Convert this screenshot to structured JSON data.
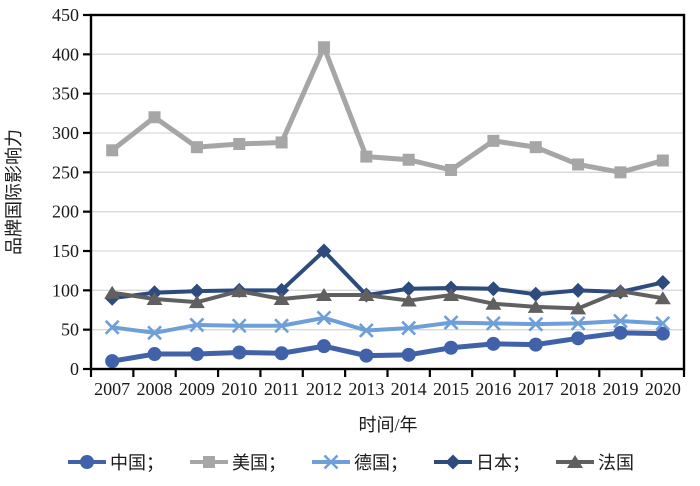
{
  "chart_data": {
    "type": "line",
    "title": "",
    "xlabel": "时间/年",
    "ylabel": "品牌国际影响力",
    "x": [
      "2007",
      "2008",
      "2009",
      "2010",
      "2011",
      "2012",
      "2013",
      "2014",
      "2015",
      "2016",
      "2017",
      "2018",
      "2019",
      "2020"
    ],
    "ylim": [
      0,
      450
    ],
    "yticks": [
      0,
      50,
      100,
      150,
      200,
      250,
      300,
      350,
      400,
      450
    ],
    "grid": true,
    "gridline_color": "#d9d9d9",
    "axis_color": "#000000",
    "legend_position": "bottom",
    "series": [
      {
        "name": "中国",
        "legend_label": "中国；",
        "color": "#4161a9",
        "marker": "circle",
        "values": [
          10,
          19,
          19,
          21,
          20,
          29,
          17,
          18,
          27,
          32,
          31,
          39,
          46,
          45
        ]
      },
      {
        "name": "美国",
        "legend_label": "美国；",
        "color": "#a6a6a6",
        "marker": "square",
        "values": [
          278,
          320,
          282,
          286,
          288,
          409,
          270,
          266,
          253,
          290,
          282,
          260,
          250,
          265
        ]
      },
      {
        "name": "德国",
        "legend_label": "德国；",
        "color": "#6f9fd8",
        "marker": "x",
        "values": [
          53,
          46,
          56,
          55,
          55,
          65,
          49,
          52,
          59,
          58,
          57,
          58,
          61,
          58
        ]
      },
      {
        "name": "日本",
        "legend_label": "日本；",
        "color": "#2e4b7e",
        "marker": "diamond",
        "values": [
          90,
          97,
          99,
          100,
          100,
          150,
          94,
          102,
          103,
          102,
          95,
          100,
          98,
          110
        ]
      },
      {
        "name": "法国",
        "legend_label": "法国",
        "color": "#606060",
        "marker": "triangle",
        "values": [
          97,
          89,
          85,
          99,
          89,
          94,
          94,
          87,
          94,
          83,
          79,
          77,
          99,
          90
        ]
      }
    ]
  }
}
